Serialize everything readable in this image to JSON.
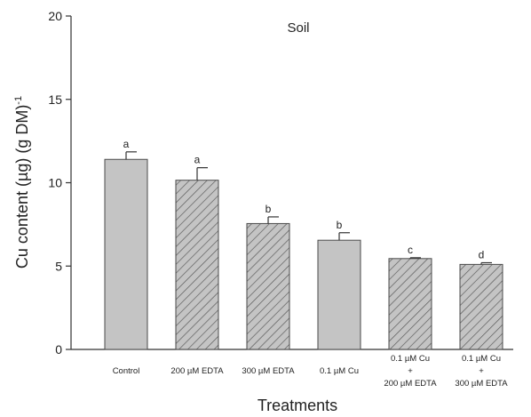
{
  "chart_data": {
    "type": "bar",
    "title": "Soil",
    "xlabel": "Treatments",
    "ylabel_main": "Cu content (µg) (g DM)",
    "ylabel_sup": "-1",
    "ylim": [
      0,
      20
    ],
    "yticks": [
      "0",
      "5",
      "10",
      "15",
      "20"
    ],
    "categories": [
      [
        "Control"
      ],
      [
        "200 µM EDTA"
      ],
      [
        "300 µM EDTA"
      ],
      [
        "0.1 µM Cu"
      ],
      [
        "0.1 µM Cu",
        "+",
        "200 µM EDTA"
      ],
      [
        "0.1 µM Cu",
        "+",
        "300 µM EDTA"
      ]
    ],
    "values": [
      11.4,
      10.15,
      7.55,
      6.55,
      5.45,
      5.1
    ],
    "errors": [
      0.45,
      0.75,
      0.4,
      0.45,
      0.05,
      0.1
    ],
    "significance": [
      "a",
      "a",
      "b",
      "b",
      "c",
      "d"
    ],
    "hatched": [
      false,
      true,
      true,
      false,
      true,
      true
    ],
    "colors": {
      "bar_fill": "#c4c4c4",
      "bar_stroke": "#4a4a4a",
      "hatch": "#555555",
      "axis": "#333333"
    }
  }
}
